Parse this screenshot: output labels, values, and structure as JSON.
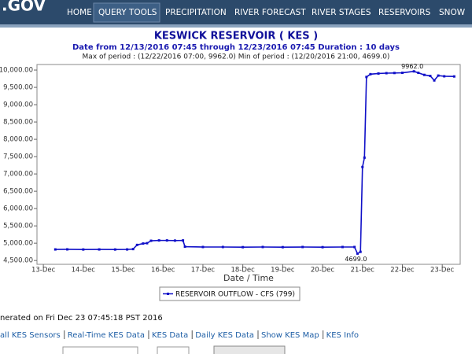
{
  "header": {
    "logo": ".GOV",
    "nav": [
      "HOME",
      "QUERY TOOLS",
      "PRECIPITATION",
      "RIVER FORECAST",
      "RIVER STAGES",
      "RESERVOIRS",
      "SNOW"
    ],
    "active": 1
  },
  "chart_data": {
    "type": "line",
    "title": "KESWICK RESERVOIR ( KES )",
    "subtitle": "Date from 12/13/2016 07:45 through 12/23/2016 07:45 Duration : 10 days",
    "period_note": "Max of period : (12/22/2016 07:00, 9962.0) Min of period : (12/20/2016 21:00, 4699.0)",
    "x_label": "Date / Time",
    "annotations": [
      {
        "text": "9962.0",
        "x": 22.29,
        "y": 9962
      },
      {
        "text": "4699.0",
        "x": 20.875,
        "y": 4699
      }
    ],
    "xlim": [
      12.84,
      23.45
    ],
    "xticks": [
      {
        "value": 13,
        "label": "13-Dec"
      },
      {
        "value": 14,
        "label": "14-Dec"
      },
      {
        "value": 15,
        "label": "15-Dec"
      },
      {
        "value": 16,
        "label": "16-Dec"
      },
      {
        "value": 17,
        "label": "17-Dec"
      },
      {
        "value": 18,
        "label": "18-Dec"
      },
      {
        "value": 19,
        "label": "19-Dec"
      },
      {
        "value": 20,
        "label": "20-Dec"
      },
      {
        "value": 21,
        "label": "21-Dec"
      },
      {
        "value": 22,
        "label": "22-Dec"
      },
      {
        "value": 23,
        "label": "23-Dec"
      }
    ],
    "ylim": [
      4390,
      10160
    ],
    "yticks": [
      {
        "value": 4500,
        "label": "4,500.00"
      },
      {
        "value": 5000,
        "label": "5,000.00"
      },
      {
        "value": 5500,
        "label": "5,500.00"
      },
      {
        "value": 6000,
        "label": "6,000.00"
      },
      {
        "value": 6500,
        "label": "6,500.00"
      },
      {
        "value": 7000,
        "label": "7,000.00"
      },
      {
        "value": 7500,
        "label": "7,500.00"
      },
      {
        "value": 8000,
        "label": "8,000.00"
      },
      {
        "value": 8500,
        "label": "8,500.00"
      },
      {
        "value": 9000,
        "label": "9,000.00"
      },
      {
        "value": 9500,
        "label": "9,500.00"
      },
      {
        "value": 10000,
        "label": "10,000.00"
      }
    ],
    "grid": false,
    "x": [
      13.3,
      13.6,
      14.0,
      14.4,
      14.8,
      15.1,
      15.25,
      15.35,
      15.5,
      15.6,
      15.7,
      15.9,
      16.1,
      16.3,
      16.5,
      16.55,
      17.0,
      17.5,
      18.0,
      18.5,
      19.0,
      19.5,
      20.0,
      20.5,
      20.8,
      20.875,
      20.95,
      21.0,
      21.05,
      21.1,
      21.2,
      21.4,
      21.6,
      21.8,
      22.0,
      22.29,
      22.4,
      22.55,
      22.7,
      22.8,
      22.9,
      23.05,
      23.3
    ],
    "series": [
      {
        "name": "RESERVOIR OUTFLOW - CFS (799)",
        "color": "#1010c8",
        "values": [
          4820,
          4822,
          4818,
          4820,
          4818,
          4820,
          4830,
          4950,
          4990,
          5000,
          5070,
          5080,
          5080,
          5075,
          5080,
          4900,
          4890,
          4890,
          4885,
          4890,
          4885,
          4890,
          4885,
          4890,
          4890,
          4699,
          4750,
          7200,
          7470,
          9800,
          9880,
          9900,
          9910,
          9915,
          9920,
          9962,
          9920,
          9860,
          9830,
          9700,
          9840,
          9820,
          9815
        ]
      }
    ]
  },
  "footer": {
    "generated": "nerated on Fri Dec 23 07:45:18 PST 2016",
    "links": [
      "all KES Sensors",
      "Real-Time KES Data",
      "KES Data",
      "Daily KES Data",
      "Show KES Map",
      "KES Info"
    ]
  }
}
